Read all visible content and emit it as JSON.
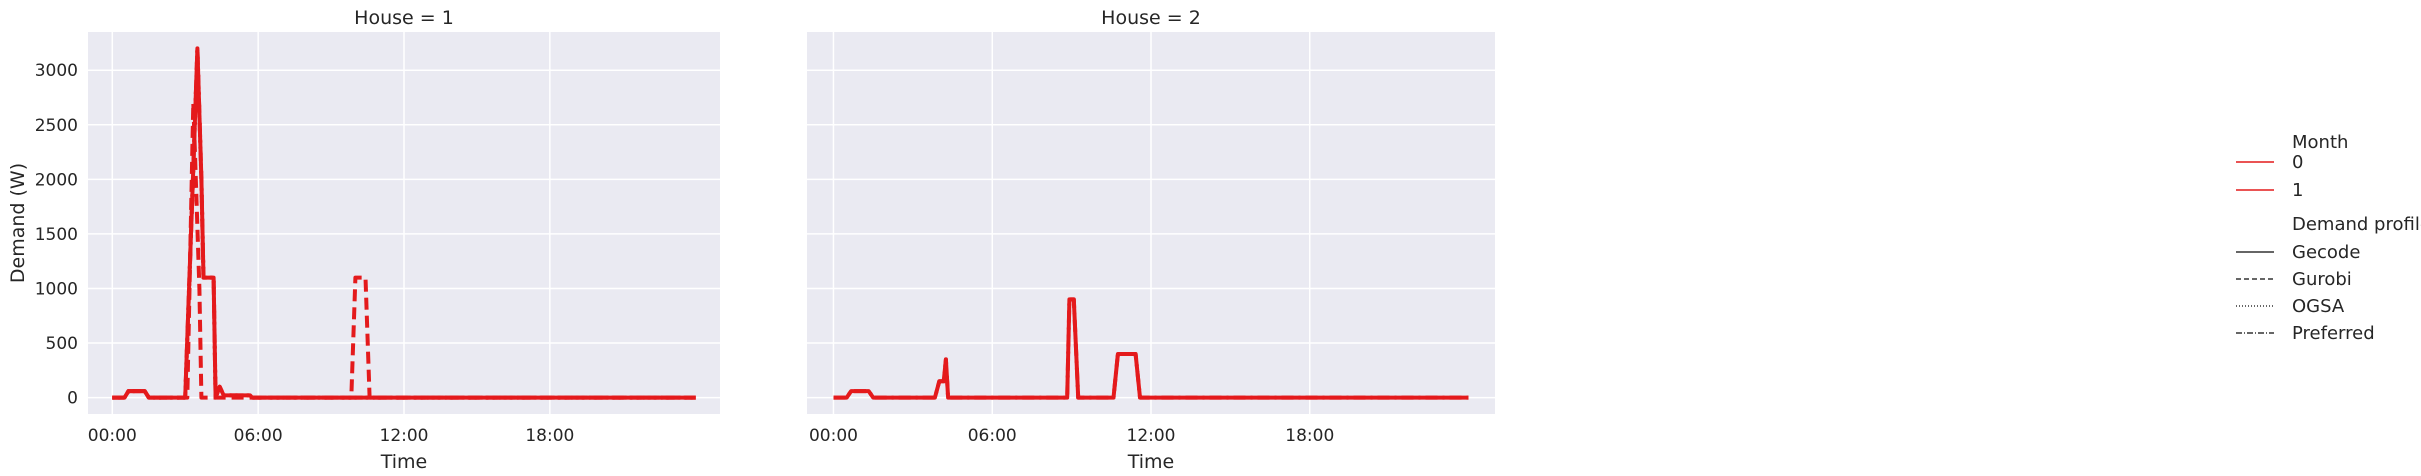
{
  "chart_data": [
    {
      "type": "line",
      "title": "House = 1",
      "xlabel": "Time",
      "ylabel": "Demand (W)",
      "xlim": [
        "-01:00",
        "25:00"
      ],
      "ylim": [
        -150,
        3350
      ],
      "xticks": [
        "00:00",
        "06:00",
        "12:00",
        "18:00"
      ],
      "yticks": [
        0,
        500,
        1000,
        1500,
        2000,
        2500,
        3000
      ],
      "grid": true,
      "series": [
        {
          "name": "Preferred",
          "month": "0",
          "color": "#e41a1c",
          "dash": "dashdot",
          "points": [
            [
              "00:00",
              0
            ],
            [
              "00:30",
              0
            ],
            [
              "00:40",
              60
            ],
            [
              "01:20",
              60
            ],
            [
              "01:30",
              0
            ],
            [
              "03:00",
              0
            ],
            [
              "03:20",
              2100
            ],
            [
              "03:30",
              3200
            ],
            [
              "03:40",
              2000
            ],
            [
              "03:45",
              1100
            ],
            [
              "04:10",
              1100
            ],
            [
              "04:15",
              0
            ],
            [
              "04:25",
              100
            ],
            [
              "04:35",
              20
            ],
            [
              "05:40",
              20
            ],
            [
              "05:45",
              0
            ],
            [
              "24:00",
              0
            ]
          ]
        },
        {
          "name": "Gecode",
          "month": "0",
          "color": "#e41a1c",
          "dash": "solid",
          "points": [
            [
              "00:00",
              0
            ],
            [
              "00:30",
              0
            ],
            [
              "00:40",
              60
            ],
            [
              "01:20",
              60
            ],
            [
              "01:30",
              0
            ],
            [
              "03:00",
              0
            ],
            [
              "03:20",
              2100
            ],
            [
              "03:30",
              3200
            ],
            [
              "03:40",
              2000
            ],
            [
              "03:45",
              1100
            ],
            [
              "04:10",
              1100
            ],
            [
              "04:15",
              0
            ],
            [
              "04:25",
              100
            ],
            [
              "04:35",
              20
            ],
            [
              "05:40",
              20
            ],
            [
              "05:45",
              0
            ],
            [
              "24:00",
              0
            ]
          ]
        },
        {
          "name": "Gurobi",
          "month": "0",
          "color": "#e41a1c",
          "dash": "dashed",
          "points": [
            [
              "00:00",
              0
            ],
            [
              "00:30",
              0
            ],
            [
              "00:40",
              60
            ],
            [
              "01:20",
              60
            ],
            [
              "01:30",
              0
            ],
            [
              "03:05",
              0
            ],
            [
              "03:20",
              2700
            ],
            [
              "03:35",
              1000
            ],
            [
              "03:40",
              0
            ],
            [
              "09:50",
              0
            ],
            [
              "10:00",
              1100
            ],
            [
              "10:25",
              1100
            ],
            [
              "10:35",
              0
            ],
            [
              "24:00",
              0
            ]
          ]
        },
        {
          "name": "OGSA",
          "month": "0",
          "color": "#e41a1c",
          "dash": "dotted",
          "points": [
            [
              "00:00",
              0
            ],
            [
              "00:30",
              0
            ],
            [
              "00:40",
              60
            ],
            [
              "01:20",
              60
            ],
            [
              "01:30",
              0
            ],
            [
              "03:00",
              0
            ],
            [
              "03:20",
              2100
            ],
            [
              "03:30",
              3200
            ],
            [
              "03:40",
              2000
            ],
            [
              "03:45",
              1100
            ],
            [
              "04:10",
              1100
            ],
            [
              "04:15",
              0
            ],
            [
              "04:25",
              100
            ],
            [
              "04:35",
              20
            ],
            [
              "05:40",
              20
            ],
            [
              "05:45",
              0
            ],
            [
              "24:00",
              0
            ]
          ]
        }
      ]
    },
    {
      "type": "line",
      "title": "House = 2",
      "xlabel": "Time",
      "ylabel": "",
      "xlim": [
        "-01:00",
        "25:00"
      ],
      "ylim": [
        -150,
        3350
      ],
      "xticks": [
        "00:00",
        "06:00",
        "12:00",
        "18:00"
      ],
      "yticks": [
        0,
        500,
        1000,
        1500,
        2000,
        2500,
        3000
      ],
      "grid": true,
      "series": [
        {
          "name": "Preferred",
          "month": "0",
          "color": "#e41a1c",
          "dash": "dashdot",
          "points": [
            [
              "00:00",
              0
            ],
            [
              "00:30",
              0
            ],
            [
              "00:40",
              60
            ],
            [
              "01:20",
              60
            ],
            [
              "01:30",
              0
            ],
            [
              "03:50",
              0
            ],
            [
              "04:00",
              150
            ],
            [
              "04:10",
              150
            ],
            [
              "04:15",
              350
            ],
            [
              "04:20",
              0
            ],
            [
              "08:50",
              0
            ],
            [
              "08:55",
              900
            ],
            [
              "09:05",
              900
            ],
            [
              "09:15",
              0
            ],
            [
              "10:35",
              0
            ],
            [
              "10:45",
              400
            ],
            [
              "11:25",
              400
            ],
            [
              "11:35",
              0
            ],
            [
              "24:00",
              0
            ]
          ]
        },
        {
          "name": "Gecode",
          "month": "0",
          "color": "#e41a1c",
          "dash": "solid",
          "points": [
            [
              "00:00",
              0
            ],
            [
              "00:30",
              0
            ],
            [
              "00:40",
              60
            ],
            [
              "01:20",
              60
            ],
            [
              "01:30",
              0
            ],
            [
              "03:50",
              0
            ],
            [
              "04:00",
              150
            ],
            [
              "04:10",
              150
            ],
            [
              "04:15",
              350
            ],
            [
              "04:20",
              0
            ],
            [
              "08:50",
              0
            ],
            [
              "08:55",
              900
            ],
            [
              "09:05",
              900
            ],
            [
              "09:15",
              0
            ],
            [
              "10:35",
              0
            ],
            [
              "10:45",
              400
            ],
            [
              "11:25",
              400
            ],
            [
              "11:35",
              0
            ],
            [
              "24:00",
              0
            ]
          ]
        }
      ]
    }
  ],
  "legend": {
    "placement": "right",
    "month_title": "Month",
    "months": [
      {
        "label": "0",
        "color": "#e41a1c"
      },
      {
        "label": "1",
        "color": "#e41a1c"
      }
    ],
    "profile_title": "Demand profile",
    "profiles": [
      {
        "label": "Gecode",
        "dash": "solid"
      },
      {
        "label": "Gurobi",
        "dash": "dashed"
      },
      {
        "label": "OGSA",
        "dash": "dotted"
      },
      {
        "label": "Preferred",
        "dash": "dashdot"
      }
    ]
  }
}
